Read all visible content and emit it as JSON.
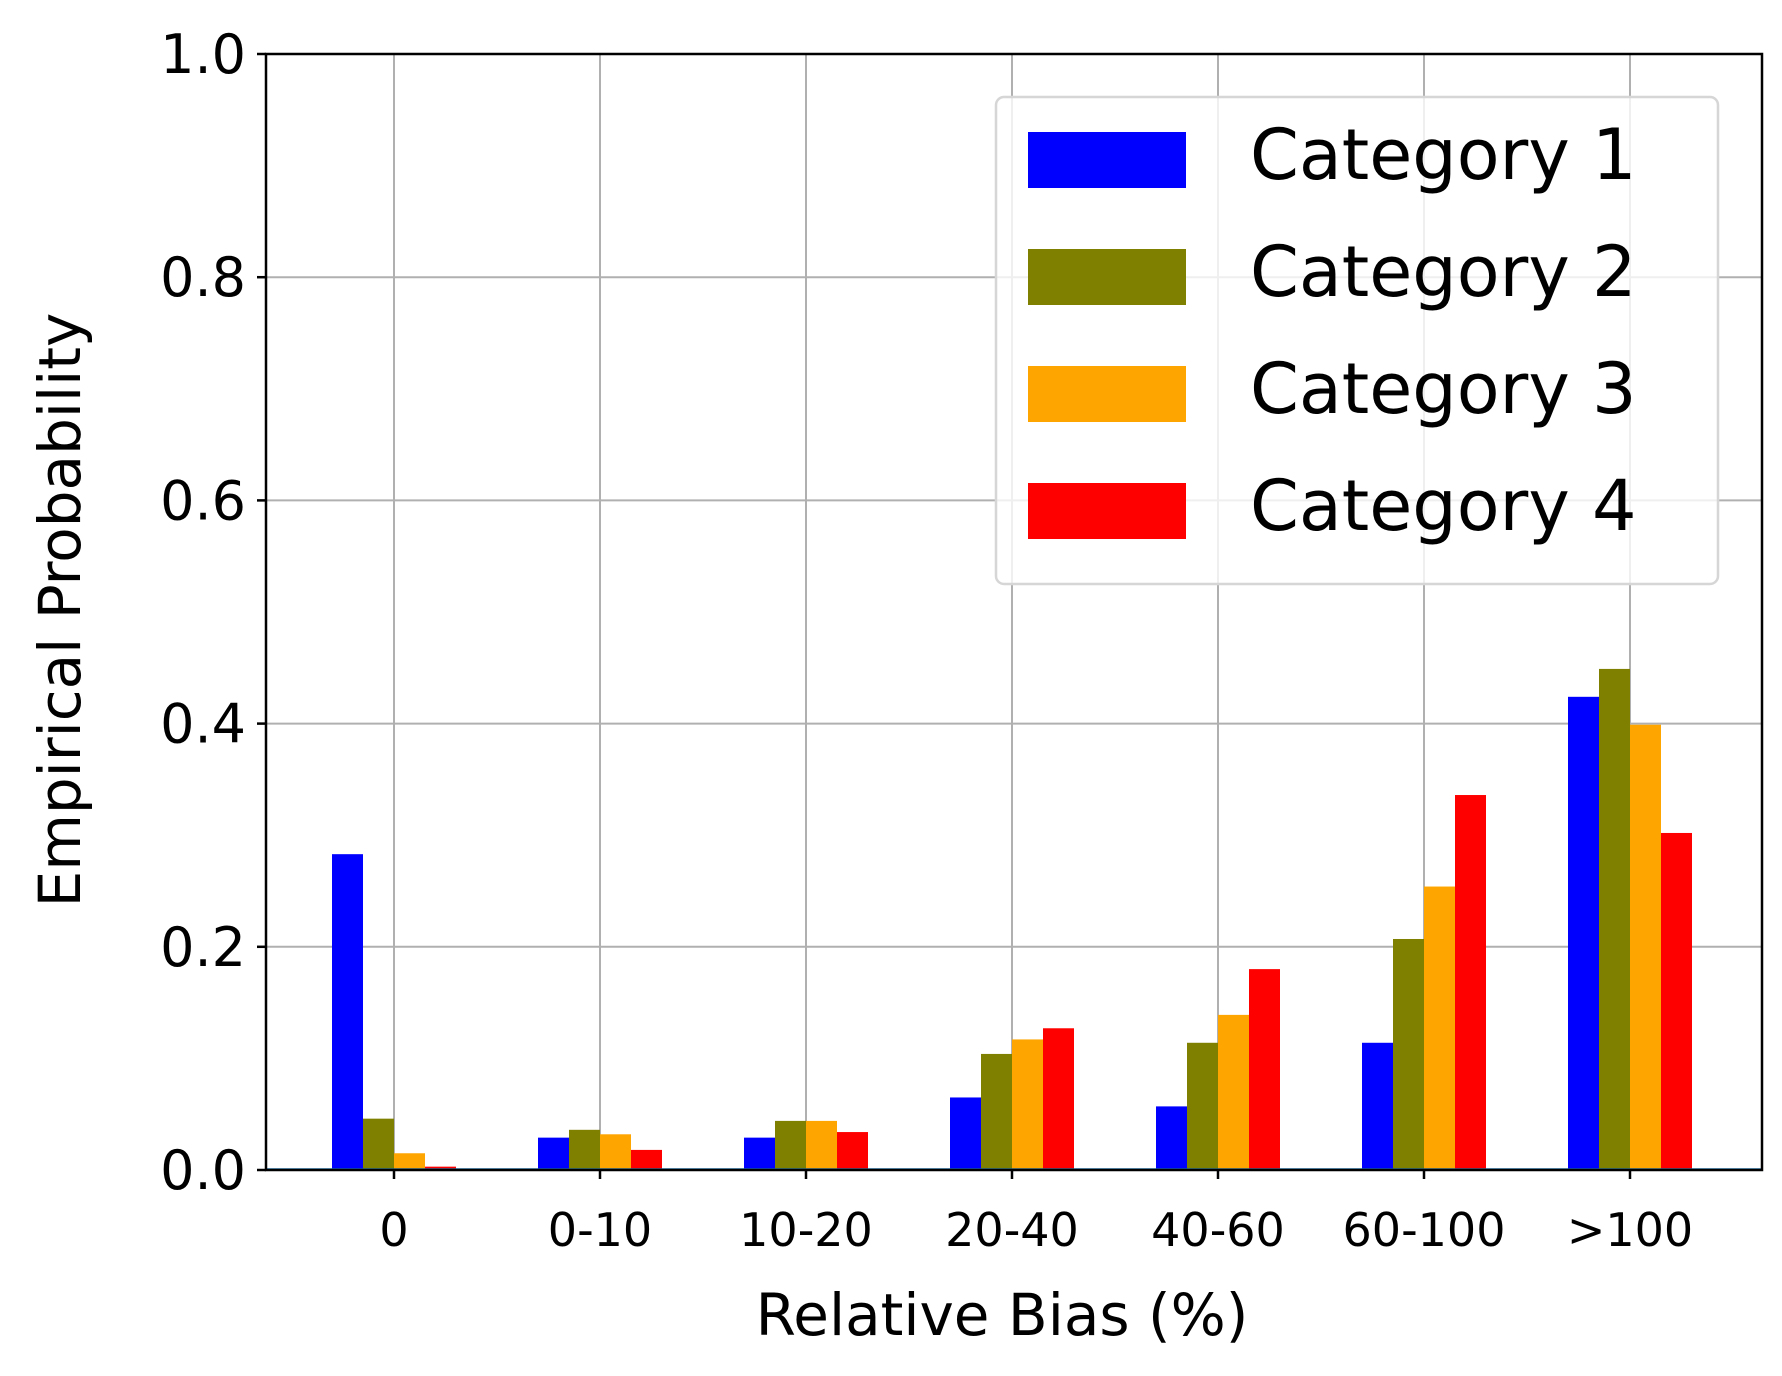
{
  "chart_data": {
    "type": "bar",
    "xlabel": "Relative Bias (%)",
    "ylabel": "Empirical Probability",
    "ylim": [
      0,
      1.0
    ],
    "yticks": [
      "0.0",
      "0.2",
      "0.4",
      "0.6",
      "0.8",
      "1.0"
    ],
    "categories": [
      "0",
      "0-10",
      "10-20",
      "20-40",
      "40-60",
      "60-100",
      ">100"
    ],
    "grid": true,
    "legend_position": "top-right",
    "series": [
      {
        "name": "Category 1",
        "color": "#0000ff",
        "values": [
          0.283,
          0.029,
          0.029,
          0.065,
          0.057,
          0.114,
          0.424
        ]
      },
      {
        "name": "Category 2",
        "color": "#808000",
        "values": [
          0.046,
          0.036,
          0.044,
          0.104,
          0.114,
          0.207,
          0.449
        ]
      },
      {
        "name": "Category 3",
        "color": "#ffa500",
        "values": [
          0.015,
          0.032,
          0.044,
          0.117,
          0.139,
          0.254,
          0.399
        ]
      },
      {
        "name": "Category 4",
        "color": "#ff0000",
        "values": [
          0.003,
          0.018,
          0.034,
          0.127,
          0.18,
          0.336,
          0.302
        ]
      }
    ]
  }
}
